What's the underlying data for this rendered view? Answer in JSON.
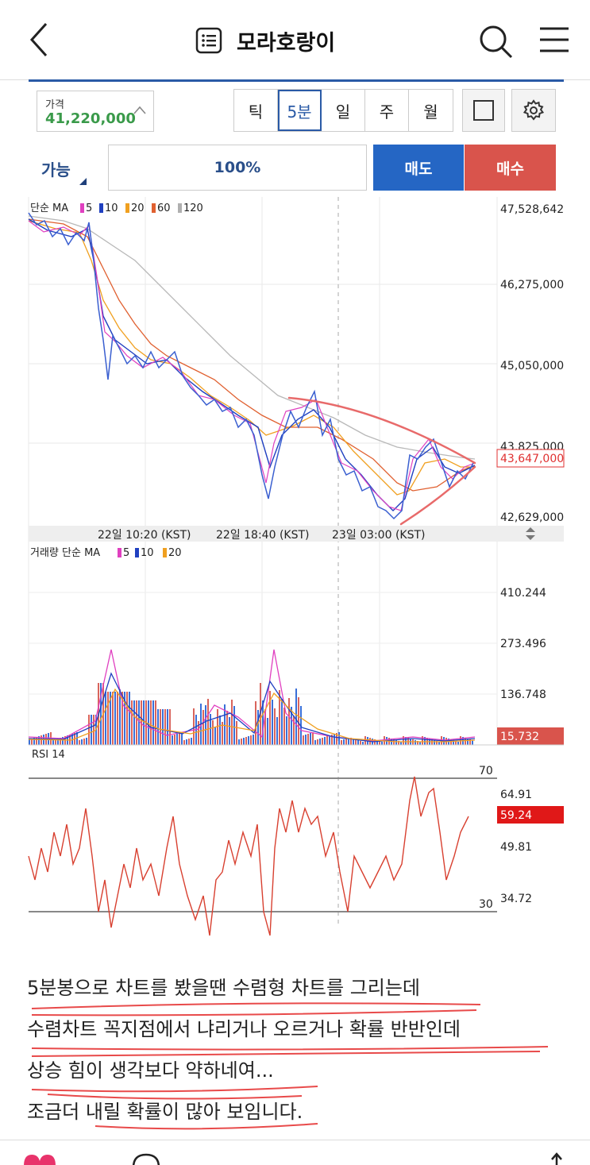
{
  "header": {
    "title": "모라호랑이",
    "icons": [
      "back-arrow-icon",
      "list-icon",
      "search-icon",
      "hamburger-menu-icon"
    ]
  },
  "toolbar": {
    "price_label": "가격",
    "price_value": "41,220,000",
    "price_color": "#3a9a4a",
    "tabs": [
      "틱",
      "5분",
      "일",
      "주",
      "월"
    ],
    "active_tab": "5분",
    "accent": "#2a5aa6"
  },
  "order": {
    "possible_label": "가능",
    "percent": "100%",
    "sell_label": "매도",
    "buy_label": "매수",
    "sell_color": "#2566c4",
    "buy_color": "#d9544c"
  },
  "price_chart": {
    "legend_title": "단순 MA",
    "ma_periods": [
      "5",
      "10",
      "20",
      "60",
      "120"
    ],
    "ma_colors": [
      "#e040c0",
      "#2040c0",
      "#f0a020",
      "#e06030",
      "#b0b0b0"
    ],
    "y_ticks": [
      "47,528,642",
      "46,275,000",
      "45,050,000",
      "43,825,000",
      "42,629,000"
    ],
    "current_price": "43,647,000",
    "current_price_color": "#e03030",
    "x_ticks": [
      "22일 10:20 (KST)",
      "22일 18:40 (KST)",
      "23일 03:00 (KST)"
    ]
  },
  "volume_chart": {
    "legend_title": "거래량 단순 MA",
    "ma_periods": [
      "5",
      "10",
      "20"
    ],
    "y_ticks": [
      "410.244",
      "273.496",
      "136.748"
    ],
    "current_value": "15.732"
  },
  "rsi_chart": {
    "title": "RSI 14",
    "upper_line": "70",
    "lower_line": "30",
    "y_ticks": [
      "64.91",
      "49.81",
      "34.72"
    ],
    "current_value": "59.24"
  },
  "post": {
    "lines": [
      "5분봉으로 차트를 봤을땐 수렴형 차트를 그리는데",
      "수렴차트 꼭지점에서 냐리거나 오르거나 확률 반반인데",
      "상승 힘이 생각보다 약하네여...",
      "조금더 내릴 확률이 많아 보임니다."
    ],
    "underline_color": "#e84a4a"
  }
}
